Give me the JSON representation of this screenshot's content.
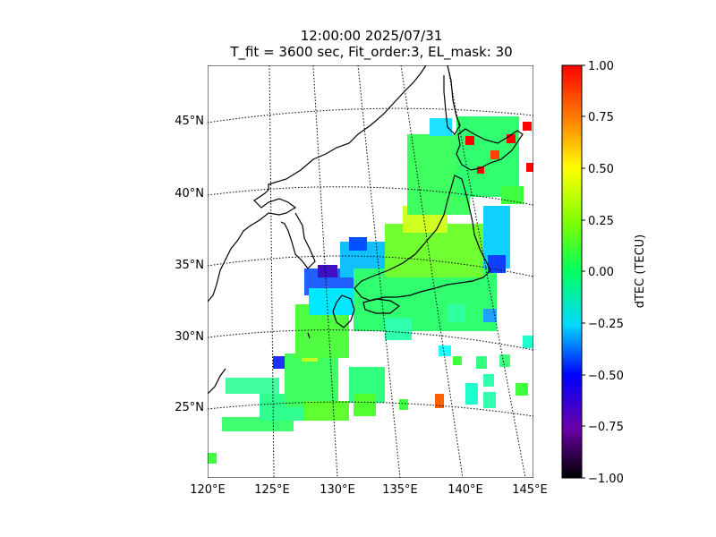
{
  "title": {
    "line1": "12:00:00 2025/07/31",
    "line2": "T_fit = 3600 sec, Fit_order:3, EL_mask: 30"
  },
  "map": {
    "lat_labels": [
      "45°N",
      "40°N",
      "35°N",
      "30°N",
      "25°N"
    ],
    "lon_labels": [
      "120°E",
      "125°E",
      "130°E",
      "135°E",
      "140°E",
      "145°E"
    ],
    "lon_range": [
      120,
      145
    ],
    "lat_range": [
      20,
      49
    ],
    "graticule": "dotted"
  },
  "colorbar": {
    "label": "dTEC (TECU)",
    "ticks": [
      "1.00",
      "0.75",
      "0.50",
      "0.25",
      "0.00",
      "−0.25",
      "−0.50",
      "−0.75",
      "−1.00"
    ],
    "range": [
      -1.0,
      1.0
    ],
    "colormap": [
      "#000000",
      "#6a00a8",
      "#0000ff",
      "#00d8ff",
      "#00ff60",
      "#7fff00",
      "#ffff00",
      "#ff8000",
      "#ff0000"
    ]
  }
}
